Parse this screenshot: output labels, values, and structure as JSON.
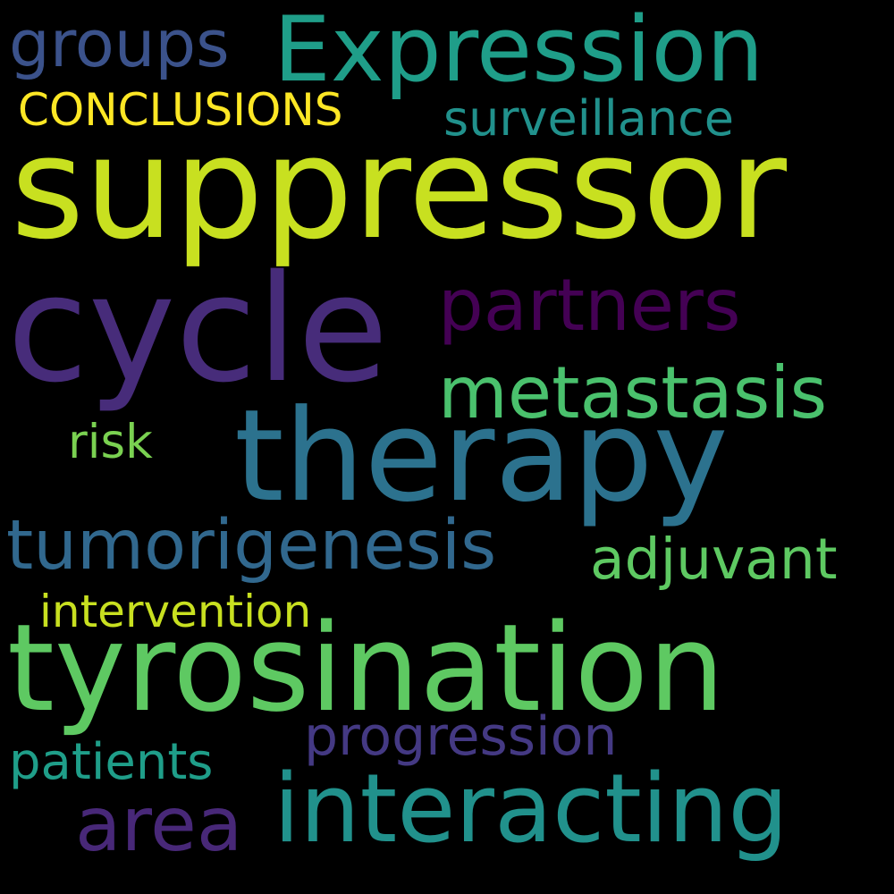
{
  "background": "#000000",
  "words": {
    "suppressor": {
      "text": "suppressor",
      "color": "#c8e020"
    },
    "cycle": {
      "text": "cycle",
      "color": "#472c7a"
    },
    "tyrosination": {
      "text": "tyrosination",
      "color": "#5ec962"
    },
    "therapy": {
      "text": "therapy",
      "color": "#2c728e"
    },
    "interacting": {
      "text": "interacting",
      "color": "#21918c"
    },
    "expression": {
      "text": "Expression",
      "color": "#1f9e89"
    },
    "tumorigenesis": {
      "text": "tumorigenesis",
      "color": "#31688e"
    },
    "metastasis": {
      "text": "metastasis",
      "color": "#4ac16d"
    },
    "partners": {
      "text": "partners",
      "color": "#440154"
    },
    "area": {
      "text": "area",
      "color": "#482878"
    },
    "groups": {
      "text": "groups",
      "color": "#3b528b"
    },
    "progression": {
      "text": "progression",
      "color": "#443983"
    },
    "adjuvant": {
      "text": "adjuvant",
      "color": "#5ec962"
    },
    "patients": {
      "text": "patients",
      "color": "#1f9e89"
    },
    "surveillance": {
      "text": "surveillance",
      "color": "#21918c"
    },
    "intervention": {
      "text": "intervention",
      "color": "#c8e020"
    },
    "conclusions": {
      "text": "CONCLUSIONS",
      "color": "#fde725"
    },
    "risk": {
      "text": "risk",
      "color": "#7ad151"
    }
  }
}
